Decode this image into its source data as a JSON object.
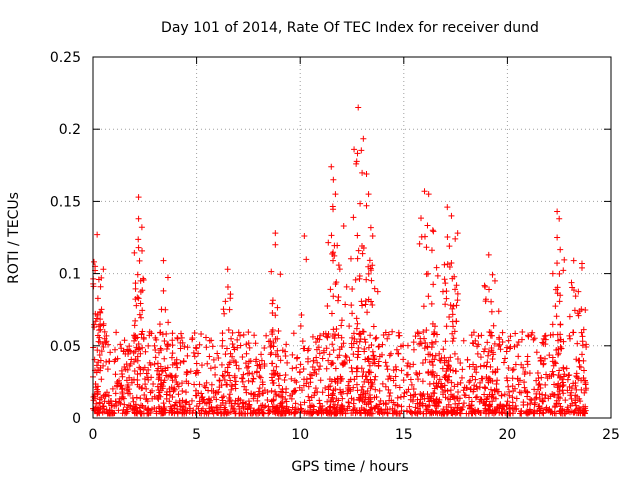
{
  "chart_data": {
    "type": "scatter",
    "title": "Day 101 of 2014, Rate Of TEC Index for receiver dund",
    "xlabel": "GPS time / hours",
    "ylabel": "ROTI / TECUs",
    "xlim": [
      0,
      25
    ],
    "ylim": [
      0,
      0.25
    ],
    "x_ticks": [
      0,
      5,
      10,
      15,
      20,
      25
    ],
    "y_ticks": [
      0,
      0.05,
      0.1,
      0.15,
      0.2,
      0.25
    ],
    "x_tick_labels": [
      "0",
      "5",
      "10",
      "15",
      "20",
      "25"
    ],
    "y_tick_labels": [
      "0",
      "0.05",
      "0.1",
      "0.15",
      "0.2",
      "0.25"
    ],
    "grid": true,
    "marker": "+",
    "color": "#ff0000",
    "x_range_observed": [
      0,
      23.8
    ],
    "series": [
      {
        "name": "ROTI",
        "peaks": [
          {
            "x": 0.1,
            "y": 0.105
          },
          {
            "x": 0.2,
            "y": 0.127
          },
          {
            "x": 0.4,
            "y": 0.097
          },
          {
            "x": 0.5,
            "y": 0.103
          },
          {
            "x": 2.2,
            "y": 0.153
          },
          {
            "x": 2.2,
            "y": 0.138
          },
          {
            "x": 2.2,
            "y": 0.118
          },
          {
            "x": 2.3,
            "y": 0.095
          },
          {
            "x": 3.4,
            "y": 0.109
          },
          {
            "x": 3.4,
            "y": 0.088
          },
          {
            "x": 6.5,
            "y": 0.103
          },
          {
            "x": 8.8,
            "y": 0.128
          },
          {
            "x": 8.8,
            "y": 0.12
          },
          {
            "x": 10.2,
            "y": 0.126
          },
          {
            "x": 11.5,
            "y": 0.174
          },
          {
            "x": 11.6,
            "y": 0.165
          },
          {
            "x": 11.7,
            "y": 0.155
          },
          {
            "x": 12.1,
            "y": 0.133
          },
          {
            "x": 12.6,
            "y": 0.186
          },
          {
            "x": 12.7,
            "y": 0.176
          },
          {
            "x": 12.8,
            "y": 0.215
          },
          {
            "x": 13.2,
            "y": 0.169
          },
          {
            "x": 13.3,
            "y": 0.155
          },
          {
            "x": 13.2,
            "y": 0.147
          },
          {
            "x": 13.5,
            "y": 0.126
          },
          {
            "x": 16.0,
            "y": 0.157
          },
          {
            "x": 16.2,
            "y": 0.155
          },
          {
            "x": 16.4,
            "y": 0.13
          },
          {
            "x": 17.1,
            "y": 0.146
          },
          {
            "x": 17.3,
            "y": 0.14
          },
          {
            "x": 17.6,
            "y": 0.128
          },
          {
            "x": 17.2,
            "y": 0.119
          },
          {
            "x": 19.1,
            "y": 0.113
          },
          {
            "x": 19.4,
            "y": 0.095
          },
          {
            "x": 22.4,
            "y": 0.143
          },
          {
            "x": 22.5,
            "y": 0.138
          },
          {
            "x": 22.4,
            "y": 0.125
          },
          {
            "x": 23.2,
            "y": 0.109
          },
          {
            "x": 23.6,
            "y": 0.107
          },
          {
            "x": 23.6,
            "y": 0.104
          }
        ],
        "typical_range": [
          0.003,
          0.06
        ]
      }
    ]
  }
}
